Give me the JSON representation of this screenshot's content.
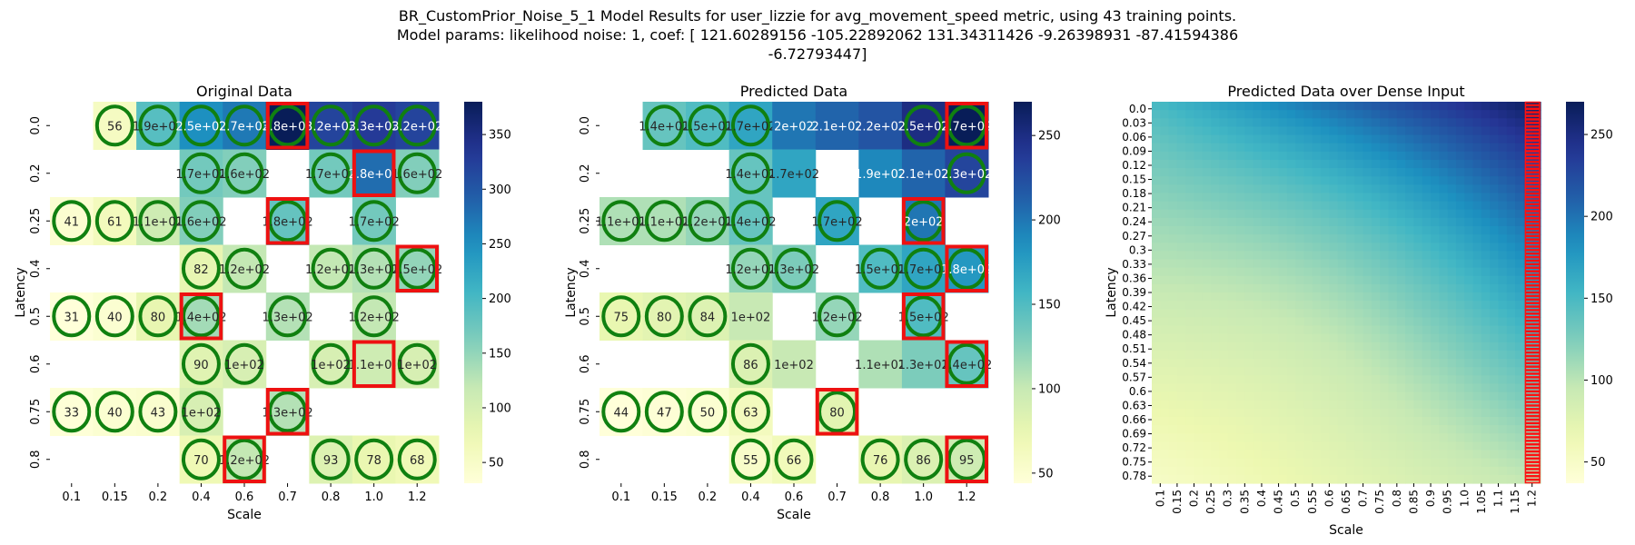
{
  "figure": {
    "title_line1": "BR_CustomPrior_Noise_5_1 Model Results for user_lizzie for avg_movement_speed metric, using 43 training points.",
    "title_line2": "Model params: likelihood noise: 1, coef: [ 121.60289156 -105.22892062  131.34311426   -9.26398931  -87.41594386",
    "title_line3": "-6.72793447]"
  },
  "chart_data": [
    {
      "type": "heatmap",
      "title": "Original Data",
      "xlabel": "Scale",
      "ylabel": "Latency",
      "colormap": "YlGnBu",
      "vmin": 31,
      "vmax": 380,
      "colorbar_ticks": [
        50,
        100,
        150,
        200,
        250,
        300,
        350
      ],
      "x_categories": [
        "0.1",
        "0.15",
        "0.2",
        "0.4",
        "0.6",
        "0.7",
        "0.8",
        "1.0",
        "1.2"
      ],
      "y_categories": [
        "0.0",
        "0.2",
        "0.25",
        "0.4",
        "0.5",
        "0.6",
        "0.75",
        "0.8"
      ],
      "values": [
        [
          null,
          56,
          190,
          250,
          270,
          380,
          320,
          330,
          320
        ],
        [
          null,
          null,
          null,
          170,
          160,
          null,
          170,
          280,
          160
        ],
        [
          41,
          61,
          110,
          160,
          null,
          180,
          null,
          170,
          null
        ],
        [
          null,
          null,
          null,
          82,
          120,
          null,
          120,
          130,
          150
        ],
        [
          31,
          40,
          80,
          140,
          null,
          130,
          null,
          120,
          null
        ],
        [
          null,
          null,
          null,
          90,
          100,
          null,
          100,
          110,
          100
        ],
        [
          33,
          40,
          43,
          100,
          null,
          130,
          null,
          null,
          null
        ],
        [
          null,
          null,
          null,
          70,
          120,
          null,
          93,
          78,
          68
        ]
      ],
      "labels": [
        [
          "",
          "56",
          "1.9e+02",
          "2.5e+02",
          "2.7e+02",
          "3.8e+02",
          "3.2e+02",
          "3.3e+02",
          "3.2e+02"
        ],
        [
          "",
          "",
          "",
          "1.7e+02",
          "1.6e+02",
          "",
          "1.7e+02",
          "2.8e+02",
          "1.6e+02"
        ],
        [
          "41",
          "61",
          "1.1e+02",
          "1.6e+02",
          "",
          "1.8e+02",
          "",
          "1.7e+02",
          ""
        ],
        [
          "",
          "",
          "",
          "82",
          "1.2e+02",
          "",
          "1.2e+02",
          "1.3e+02",
          "1.5e+02"
        ],
        [
          "31",
          "40",
          "80",
          "1.4e+02",
          "",
          "1.3e+02",
          "",
          "1.2e+02",
          ""
        ],
        [
          "",
          "",
          "",
          "90",
          "1e+02",
          "",
          "1e+02",
          "1.1e+02",
          "1e+02"
        ],
        [
          "33",
          "40",
          "43",
          "1e+02",
          "",
          "1.3e+02",
          "",
          "",
          ""
        ],
        [
          "",
          "",
          "",
          "70",
          "1.2e+02",
          "",
          "93",
          "78",
          "68"
        ]
      ],
      "circles": [
        [
          false,
          true,
          true,
          true,
          true,
          true,
          true,
          true,
          true
        ],
        [
          false,
          false,
          false,
          true,
          true,
          false,
          true,
          false,
          true
        ],
        [
          true,
          true,
          true,
          true,
          false,
          true,
          false,
          true,
          false
        ],
        [
          false,
          false,
          false,
          true,
          true,
          false,
          true,
          true,
          true
        ],
        [
          true,
          true,
          true,
          true,
          false,
          true,
          false,
          true,
          false
        ],
        [
          false,
          false,
          false,
          true,
          true,
          false,
          true,
          false,
          true
        ],
        [
          true,
          true,
          true,
          true,
          false,
          true,
          false,
          false,
          false
        ],
        [
          false,
          false,
          false,
          true,
          true,
          false,
          true,
          true,
          true
        ]
      ],
      "red_boxes": [
        [
          0,
          5
        ],
        [
          1,
          7
        ],
        [
          2,
          5
        ],
        [
          3,
          8
        ],
        [
          4,
          3
        ],
        [
          5,
          7
        ],
        [
          6,
          5
        ],
        [
          7,
          4
        ]
      ]
    },
    {
      "type": "heatmap",
      "title": "Predicted Data",
      "xlabel": "Scale",
      "ylabel": "Latency",
      "colormap": "YlGnBu",
      "vmin": 44,
      "vmax": 270,
      "colorbar_ticks": [
        50,
        100,
        150,
        200,
        250
      ],
      "x_categories": [
        "0.1",
        "0.15",
        "0.2",
        "0.4",
        "0.6",
        "0.7",
        "0.8",
        "1.0",
        "1.2"
      ],
      "y_categories": [
        "0.0",
        "0.2",
        "0.25",
        "0.4",
        "0.5",
        "0.6",
        "0.75",
        "0.8"
      ],
      "values": [
        [
          null,
          140,
          150,
          170,
          200,
          210,
          220,
          250,
          270
        ],
        [
          null,
          null,
          null,
          140,
          170,
          null,
          190,
          210,
          230
        ],
        [
          110,
          110,
          120,
          140,
          null,
          170,
          null,
          200,
          null
        ],
        [
          null,
          null,
          null,
          120,
          130,
          null,
          150,
          170,
          180
        ],
        [
          75,
          80,
          84,
          100,
          null,
          120,
          null,
          150,
          null
        ],
        [
          null,
          null,
          null,
          86,
          100,
          null,
          110,
          130,
          140
        ],
        [
          44,
          47,
          50,
          63,
          null,
          80,
          null,
          null,
          null
        ],
        [
          null,
          null,
          null,
          55,
          66,
          null,
          76,
          86,
          95
        ]
      ],
      "labels": [
        [
          "",
          "1.4e+02",
          "1.5e+02",
          "1.7e+02",
          "2e+02",
          "2.1e+02",
          "2.2e+02",
          "2.5e+02",
          "2.7e+02"
        ],
        [
          "",
          "",
          "",
          "1.4e+02",
          "1.7e+02",
          "",
          "1.9e+02",
          "2.1e+02",
          "2.3e+02"
        ],
        [
          "1.1e+02",
          "1.1e+02",
          "1.2e+02",
          "1.4e+02",
          "",
          "1.7e+02",
          "",
          "2e+02",
          ""
        ],
        [
          "",
          "",
          "",
          "1.2e+02",
          "1.3e+02",
          "",
          "1.5e+02",
          "1.7e+02",
          "1.8e+02"
        ],
        [
          "75",
          "80",
          "84",
          "1e+02",
          "",
          "1.2e+02",
          "",
          "1.5e+02",
          ""
        ],
        [
          "",
          "",
          "",
          "86",
          "1e+02",
          "",
          "1.1e+02",
          "1.3e+02",
          "1.4e+02"
        ],
        [
          "44",
          "47",
          "50",
          "63",
          "",
          "80",
          "",
          "",
          ""
        ],
        [
          "",
          "",
          "",
          "55",
          "66",
          "",
          "76",
          "86",
          "95"
        ]
      ],
      "circles": [
        [
          false,
          true,
          true,
          true,
          false,
          false,
          false,
          true,
          true
        ],
        [
          false,
          false,
          false,
          true,
          false,
          false,
          false,
          false,
          true
        ],
        [
          true,
          true,
          true,
          true,
          false,
          true,
          false,
          true,
          false
        ],
        [
          false,
          false,
          false,
          true,
          true,
          false,
          true,
          true,
          true
        ],
        [
          true,
          true,
          true,
          false,
          false,
          true,
          false,
          true,
          false
        ],
        [
          false,
          false,
          false,
          true,
          false,
          false,
          false,
          false,
          true
        ],
        [
          true,
          true,
          true,
          true,
          false,
          true,
          false,
          false,
          false
        ],
        [
          false,
          false,
          false,
          true,
          true,
          false,
          true,
          true,
          true
        ]
      ],
      "red_boxes": [
        [
          0,
          8
        ],
        [
          2,
          7
        ],
        [
          3,
          8
        ],
        [
          4,
          7
        ],
        [
          5,
          8
        ],
        [
          6,
          5
        ],
        [
          7,
          8
        ]
      ]
    },
    {
      "type": "heatmap",
      "title": "Predicted Data over Dense Input",
      "xlabel": "Scale",
      "ylabel": "Latency",
      "colormap": "YlGnBu",
      "vmin": 37,
      "vmax": 270,
      "colorbar_ticks": [
        50,
        100,
        150,
        200,
        250
      ],
      "x_categories": [
        "0.1",
        "0.15",
        "0.2",
        "0.25",
        "0.3",
        "0.35",
        "0.4",
        "0.45",
        "0.5",
        "0.55",
        "0.6",
        "0.65",
        "0.7",
        "0.75",
        "0.8",
        "0.85",
        "0.9",
        "0.95",
        "1.0",
        "1.05",
        "1.1",
        "1.15",
        "1.2"
      ],
      "y_categories": [
        "0.0",
        "0.03",
        "0.06",
        "0.09",
        "0.12",
        "0.15",
        "0.18",
        "0.21",
        "0.24",
        "0.27",
        "0.3",
        "0.33",
        "0.36",
        "0.39",
        "0.42",
        "0.45",
        "0.48",
        "0.51",
        "0.54",
        "0.57",
        "0.6",
        "0.63",
        "0.66",
        "0.69",
        "0.72",
        "0.75",
        "0.78"
      ],
      "value_at_corners": {
        "scale_0.1_latency_0.0": 150,
        "scale_1.2_latency_0.0": 270,
        "scale_0.1_latency_0.78": 50,
        "scale_1.2_latency_0.78": 97
      },
      "highlighted_column": "1.2"
    }
  ]
}
